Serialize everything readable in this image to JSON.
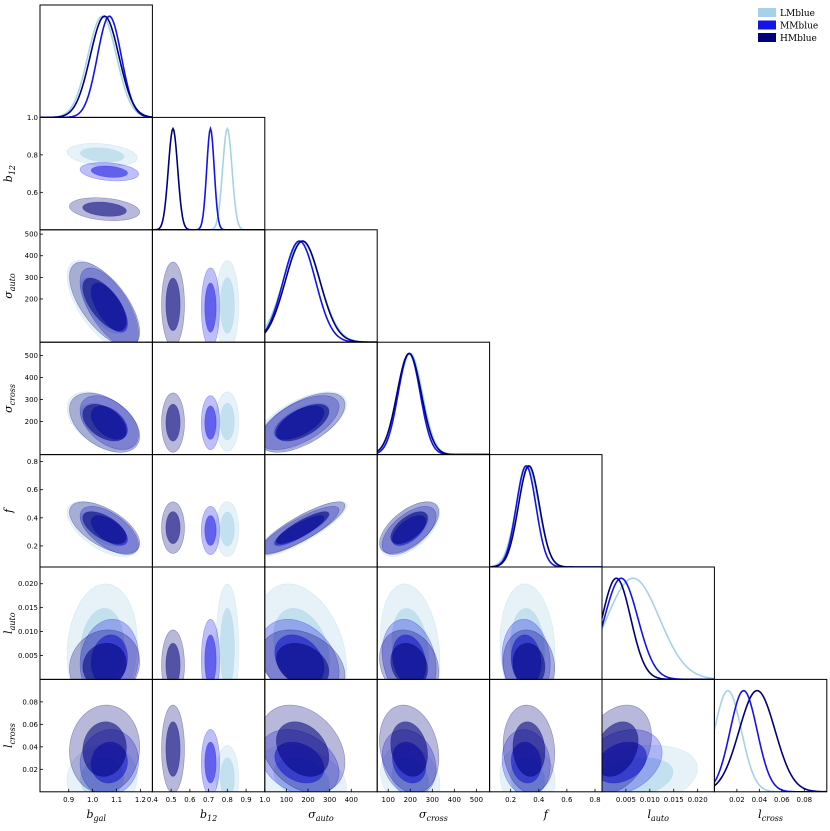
{
  "chart_data": {
    "type": "corner",
    "legend": {
      "placement": "top-right",
      "entries": [
        {
          "name": "LMblue",
          "color": "#a6d2e6"
        },
        {
          "name": "MMblue",
          "color": "#1414e6"
        },
        {
          "name": "HMblue",
          "color": "#00007a"
        }
      ]
    },
    "parameters": [
      {
        "key": "bgal",
        "label": "b",
        "sub": "gal",
        "range": [
          0.78,
          1.25
        ],
        "ticks": [
          0.9,
          1.0,
          1.1,
          1.2
        ],
        "tick_labels": [
          "0.9",
          "1.0",
          "1.1",
          "1.2"
        ]
      },
      {
        "key": "b12",
        "label": "b",
        "sub": "12",
        "range": [
          0.4,
          1.0
        ],
        "ticks": [
          0.4,
          0.5,
          0.6,
          0.7,
          0.8,
          0.9,
          1.0
        ],
        "tick_labels": [
          "0.4",
          "0.5",
          "0.6",
          "0.7",
          "0.8",
          "0.9",
          "1.0"
        ],
        "y_ticks": [
          0.6,
          0.8,
          1.0
        ],
        "y_tick_labels": [
          "0.6",
          "0.8",
          "1.0"
        ]
      },
      {
        "key": "sauto",
        "label": "σ",
        "sub": "auto",
        "range": [
          0,
          520
        ],
        "ticks": [
          100,
          200,
          300,
          400
        ],
        "tick_labels": [
          "100",
          "200",
          "300",
          "400"
        ],
        "y_ticks": [
          200,
          300,
          400,
          500
        ],
        "y_tick_labels": [
          "200",
          "300",
          "400",
          "500"
        ]
      },
      {
        "key": "scross",
        "label": "σ",
        "sub": "cross",
        "range": [
          50,
          560
        ],
        "ticks": [
          100,
          200,
          300,
          400,
          500
        ],
        "tick_labels": [
          "100",
          "200",
          "300",
          "400",
          "500"
        ],
        "y_ticks": [
          200,
          300,
          400,
          500
        ],
        "y_tick_labels": [
          "200",
          "300",
          "400",
          "500"
        ]
      },
      {
        "key": "f",
        "label": "f",
        "sub": "",
        "range": [
          0.05,
          0.85
        ],
        "ticks": [
          0.2,
          0.4,
          0.6,
          0.8
        ],
        "tick_labels": [
          "0.2",
          "0.4",
          "0.6",
          "0.8"
        ],
        "y_ticks": [
          0.2,
          0.4,
          0.6,
          0.8
        ],
        "y_tick_labels": [
          "0.2",
          "0.4",
          "0.6",
          "0.8"
        ]
      },
      {
        "key": "lauto",
        "label": "l",
        "sub": "auto",
        "range": [
          0.0,
          0.0235
        ],
        "ticks": [
          0.005,
          0.01,
          0.015,
          0.02
        ],
        "tick_labels": [
          "0.005",
          "0.010",
          "0.015",
          "0.020"
        ],
        "y_ticks": [
          0.005,
          0.01,
          0.015,
          0.02
        ],
        "y_tick_labels": [
          "0.005",
          "0.010",
          "0.015",
          "0.020"
        ]
      },
      {
        "key": "lcross",
        "label": "l",
        "sub": "cross",
        "range": [
          0.0,
          0.1
        ],
        "ticks": [
          0.02,
          0.04,
          0.06,
          0.08
        ],
        "tick_labels": [
          "0.02",
          "0.04",
          "0.06",
          "0.08"
        ],
        "y_ticks": [
          0.02,
          0.04,
          0.06,
          0.08
        ],
        "y_tick_labels": [
          "0.02",
          "0.04",
          "0.06",
          "0.08"
        ]
      }
    ],
    "series": [
      {
        "name": "LMblue",
        "color": "#a6d2e6",
        "mean": {
          "bgal": 1.04,
          "b12": 0.8,
          "sauto": 170,
          "scross": 200,
          "f": 0.32,
          "lauto": 0.0065,
          "lcross": 0.012
        },
        "sigma": {
          "bgal": 0.06,
          "b12": 0.025,
          "sauto": 85,
          "scross": 55,
          "f": 0.08,
          "lauto": 0.0055,
          "lcross": 0.012
        }
      },
      {
        "name": "MMblue",
        "color": "#1414e6",
        "mean": {
          "bgal": 1.07,
          "b12": 0.71,
          "sauto": 160,
          "scross": 195,
          "f": 0.31,
          "lauto": 0.004,
          "lcross": 0.026
        },
        "sigma": {
          "bgal": 0.05,
          "b12": 0.02,
          "sauto": 75,
          "scross": 50,
          "f": 0.07,
          "lauto": 0.0035,
          "lcross": 0.012
        }
      },
      {
        "name": "HMblue",
        "color": "#00007a",
        "mean": {
          "bgal": 1.05,
          "b12": 0.51,
          "sauto": 175,
          "scross": 195,
          "f": 0.33,
          "lauto": 0.003,
          "lcross": 0.038
        },
        "sigma": {
          "bgal": 0.06,
          "b12": 0.025,
          "sauto": 80,
          "scross": 55,
          "f": 0.075,
          "lauto": 0.003,
          "lcross": 0.016
        }
      }
    ],
    "correlations": {
      "b12|bgal": -0.25,
      "sauto|bgal": -0.65,
      "sauto|b12": 0.0,
      "scross|bgal": -0.45,
      "scross|b12": 0.0,
      "scross|sauto": 0.6,
      "f|bgal": -0.6,
      "f|b12": 0.0,
      "f|sauto": 0.85,
      "f|scross": 0.6,
      "lauto|bgal": 0.1,
      "lauto|b12": 0.0,
      "lauto|sauto": -0.3,
      "lauto|scross": -0.2,
      "lauto|f": -0.1,
      "lcross|bgal": 0.05,
      "lcross|b12": 0.0,
      "lcross|sauto": -0.3,
      "lcross|scross": -0.2,
      "lcross|f": -0.1,
      "lcross|lauto": 0.3
    }
  }
}
